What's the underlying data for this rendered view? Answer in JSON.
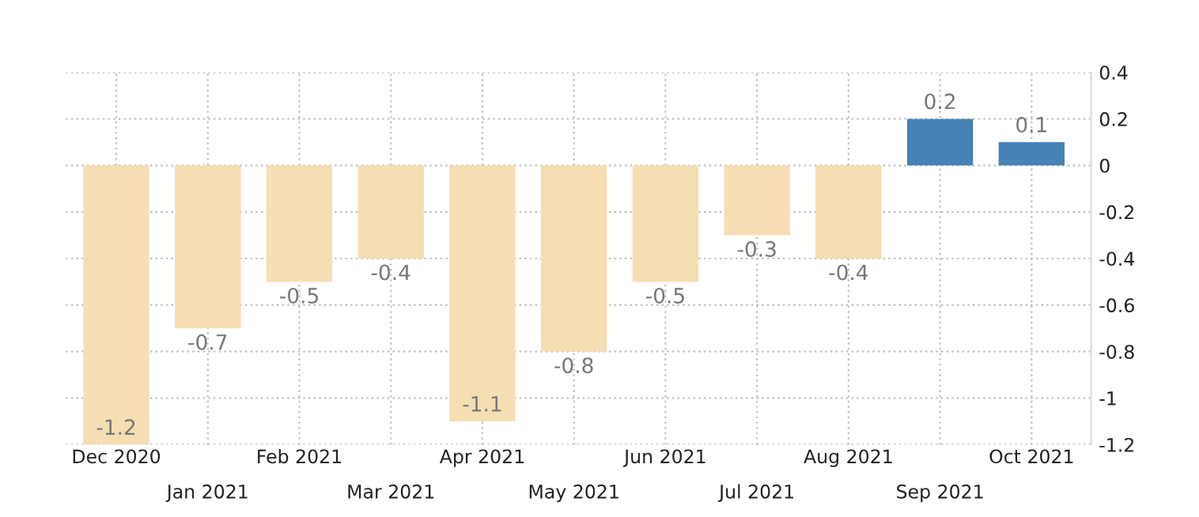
{
  "chart_data": {
    "type": "bar",
    "categories": [
      "Dec 2020",
      "Jan 2021",
      "Feb 2021",
      "Mar 2021",
      "Apr 2021",
      "May 2021",
      "Jun 2021",
      "Jul 2021",
      "Aug 2021",
      "Sep 2021",
      "Oct 2021"
    ],
    "values": [
      -1.2,
      -0.7,
      -0.5,
      -0.4,
      -1.1,
      -0.8,
      -0.5,
      -0.3,
      -0.4,
      0.2,
      0.1
    ],
    "colors": [
      "#f5deb3",
      "#f5deb3",
      "#f5deb3",
      "#f5deb3",
      "#f5deb3",
      "#f5deb3",
      "#f5deb3",
      "#f5deb3",
      "#f5deb3",
      "#4682b4",
      "#4682b4"
    ],
    "ylim": [
      -1.2,
      0.4
    ],
    "yticks": [
      0.4,
      0.2,
      0,
      -0.2,
      -0.4,
      -0.6,
      -0.8,
      -1,
      -1.2
    ],
    "grid": true,
    "data_labels": true
  }
}
